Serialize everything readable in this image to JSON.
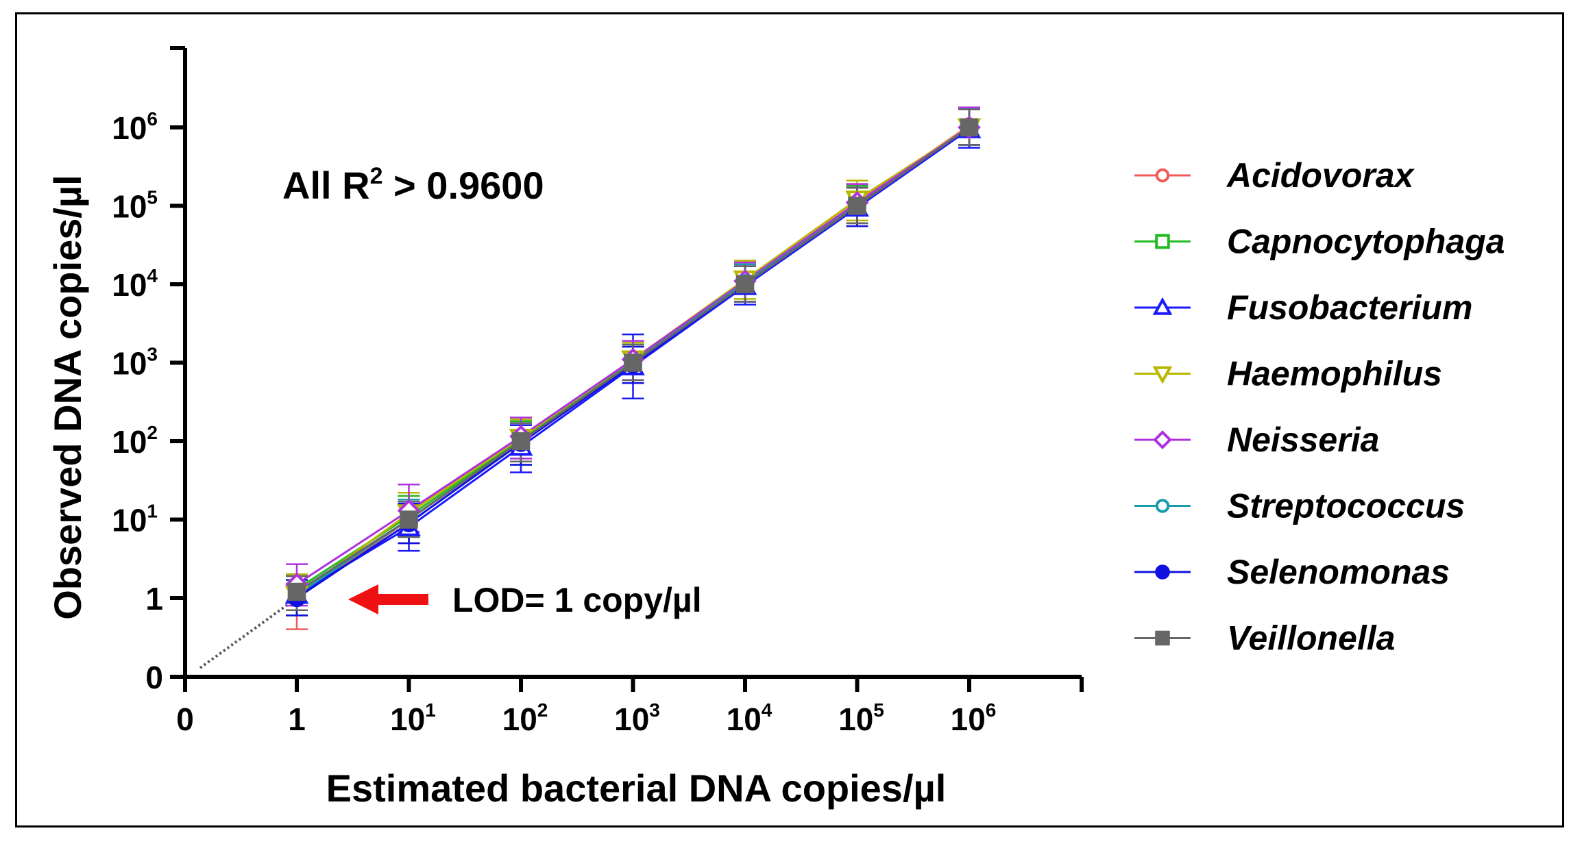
{
  "chart_data": {
    "type": "scatter",
    "title": "",
    "xlabel": "Estimated bacterial DNA copies/µl",
    "ylabel": "Observed DNA copies/µl",
    "x_scale": "log",
    "y_scale": "log",
    "x_ticks": [
      {
        "base": "0",
        "exp": ""
      },
      {
        "base": "1",
        "exp": ""
      },
      {
        "base": "10",
        "exp": "1"
      },
      {
        "base": "10",
        "exp": "2"
      },
      {
        "base": "10",
        "exp": "3"
      },
      {
        "base": "10",
        "exp": "4"
      },
      {
        "base": "10",
        "exp": "5"
      },
      {
        "base": "10",
        "exp": "6"
      }
    ],
    "y_ticks": [
      {
        "base": "0",
        "exp": ""
      },
      {
        "base": "1",
        "exp": ""
      },
      {
        "base": "10",
        "exp": "1"
      },
      {
        "base": "10",
        "exp": "2"
      },
      {
        "base": "10",
        "exp": "3"
      },
      {
        "base": "10",
        "exp": "4"
      },
      {
        "base": "10",
        "exp": "5"
      },
      {
        "base": "10",
        "exp": "6"
      }
    ],
    "x": [
      1,
      10,
      100,
      1000,
      10000,
      100000,
      1000000
    ],
    "series": [
      {
        "name": "Acidovorax",
        "color": "#f05a5a",
        "marker": "circle-open",
        "values": [
          1.0,
          10,
          100,
          1100,
          11000,
          110000,
          1050000
        ],
        "err_low": [
          0.4,
          5,
          40,
          600,
          6000,
          60000,
          550000
        ],
        "err_high": [
          2.0,
          20,
          180,
          1800,
          20000,
          190000,
          1800000
        ]
      },
      {
        "name": "Capnocytophaga",
        "color": "#22bb22",
        "marker": "square-open",
        "values": [
          1.3,
          11,
          105,
          1050,
          10500,
          105000,
          1000000
        ],
        "err_low": [
          0.7,
          6,
          55,
          600,
          6000,
          60000,
          600000
        ],
        "err_high": [
          2.0,
          20,
          180,
          1700,
          18000,
          180000,
          1700000
        ]
      },
      {
        "name": "Fusobacterium",
        "color": "#1a1aff",
        "marker": "triangle-up-open",
        "values": [
          1.1,
          8,
          85,
          900,
          9500,
          95000,
          950000
        ],
        "err_low": [
          0.6,
          4,
          40,
          350,
          5500,
          55000,
          550000
        ],
        "err_high": [
          1.9,
          16,
          170,
          2300,
          17000,
          170000,
          1700000
        ]
      },
      {
        "name": "Haemophilus",
        "color": "#b8b800",
        "marker": "triangle-down-open",
        "values": [
          1.1,
          12,
          110,
          1100,
          11500,
          120000,
          1000000
        ],
        "err_low": [
          0.6,
          6,
          60,
          600,
          6500,
          65000,
          600000
        ],
        "err_high": [
          2.0,
          22,
          190,
          1800,
          20000,
          210000,
          1800000
        ]
      },
      {
        "name": "Neisseria",
        "color": "#b030e0",
        "marker": "diamond-open",
        "values": [
          1.5,
          13,
          115,
          1100,
          11000,
          110000,
          1000000
        ],
        "err_low": [
          0.8,
          7,
          60,
          600,
          6000,
          60000,
          600000
        ],
        "err_high": [
          2.7,
          28,
          200,
          1900,
          19000,
          190000,
          1800000
        ]
      },
      {
        "name": "Streptococcus",
        "color": "#1a9aaa",
        "marker": "circle-open",
        "values": [
          1.1,
          10,
          100,
          1000,
          10500,
          100000,
          1000000
        ],
        "err_low": [
          0.6,
          5,
          50,
          550,
          6000,
          55000,
          600000
        ],
        "err_high": [
          1.9,
          18,
          170,
          1700,
          18000,
          170000,
          1700000
        ]
      },
      {
        "name": "Selenomonas",
        "color": "#1010e0",
        "marker": "circle-filled",
        "values": [
          1.0,
          9,
          95,
          950,
          10000,
          100000,
          1000000
        ],
        "err_low": [
          0.6,
          5,
          50,
          550,
          6000,
          55000,
          600000
        ],
        "err_high": [
          1.7,
          16,
          160,
          1600,
          17000,
          170000,
          1700000
        ]
      },
      {
        "name": "Veillonella",
        "color": "#666666",
        "marker": "square-filled",
        "values": [
          1.2,
          10,
          100,
          1000,
          10000,
          100000,
          1000000
        ],
        "err_low": [
          0.7,
          6,
          55,
          600,
          6000,
          60000,
          600000
        ],
        "err_high": [
          1.9,
          17,
          170,
          1700,
          17000,
          170000,
          1700000
        ]
      }
    ],
    "annotations": {
      "r2_prefix": "All R",
      "r2_exp": "2",
      "r2_suffix": " > 0.9600",
      "lod_text": "LOD= 1 copy/µl",
      "lod_x": 1,
      "lod_y": 1
    },
    "legend_position": "right",
    "grid": false,
    "colors": {
      "arrow": "#ee1111",
      "axis": "#000000",
      "dotted_line": "#555555"
    }
  }
}
